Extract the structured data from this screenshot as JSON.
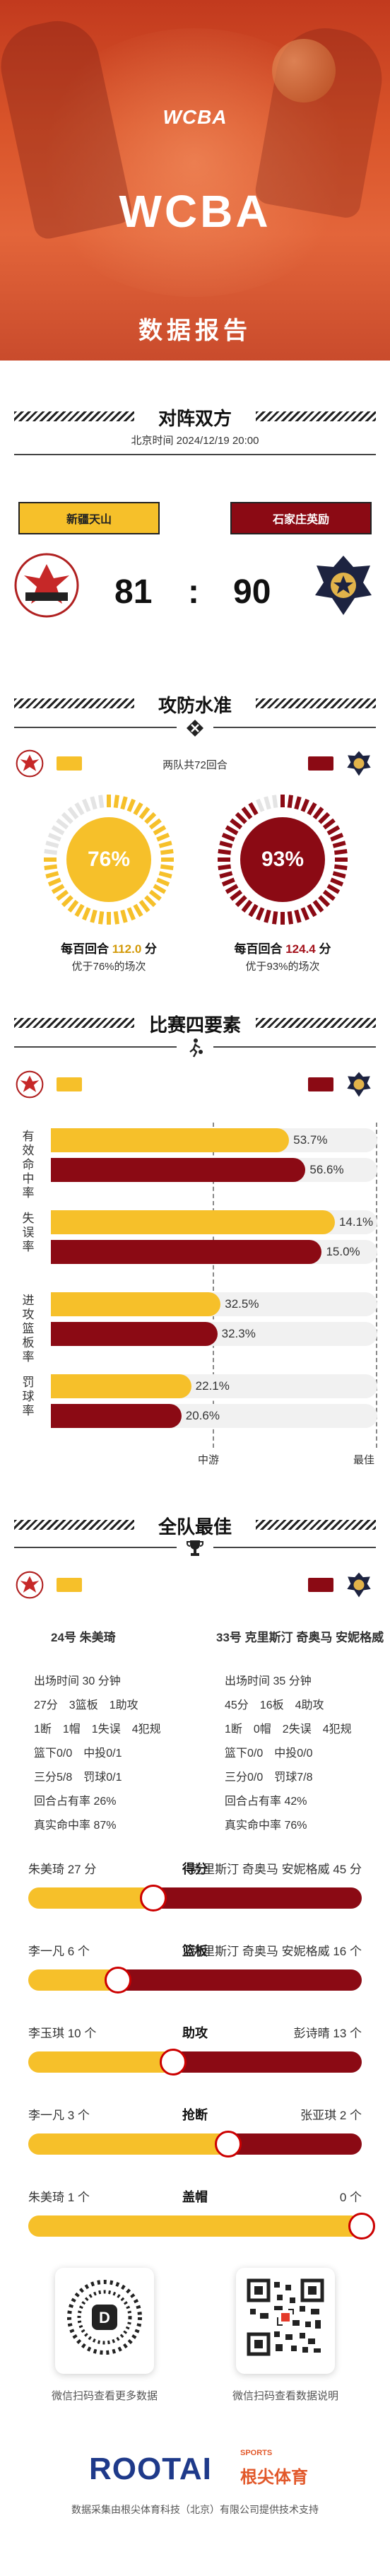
{
  "colors": {
    "team1": "#f6c02a",
    "team2": "#8b0a14",
    "accent": "#c23a1e"
  },
  "header": {
    "logo": "WCBA",
    "title": "WCBA",
    "subtitle": "数据报告"
  },
  "match": {
    "section_title": "对阵双方",
    "time": "北京时间 2024/12/19 20:00",
    "team1": "新疆天山",
    "team2": "石家庄英励",
    "score1": "81",
    "score_sep": ":",
    "score2": "90"
  },
  "offense_defense": {
    "section_title": "攻防水准",
    "rounds_note": "两队共72回合",
    "team1": {
      "pct": "76%",
      "pct_value": 0.76,
      "per100_label": "每百回合",
      "per100_value": "112.0",
      "unit": "分",
      "note": "优于76%的场次"
    },
    "team2": {
      "pct": "93%",
      "pct_value": 0.93,
      "per100_label": "每百回合",
      "per100_value": "124.4",
      "unit": "分",
      "note": "优于93%的场次"
    }
  },
  "four_factors": {
    "section_title": "比赛四要素",
    "axis_mid": "中游",
    "axis_best": "最佳",
    "items": [
      {
        "label": "有效命中率",
        "v1": "53.7%",
        "v2": "56.6%",
        "f1": 0.73,
        "f2": 0.78
      },
      {
        "label": "失误率",
        "v1": "14.1%",
        "v2": "15.0%",
        "f1": 0.87,
        "f2": 0.83
      },
      {
        "label": "进攻篮板率",
        "v1": "32.5%",
        "v2": "32.3%",
        "f1": 0.52,
        "f2": 0.51
      },
      {
        "label": "罚球率",
        "v1": "22.1%",
        "v2": "20.6%",
        "f1": 0.43,
        "f2": 0.4
      }
    ]
  },
  "best": {
    "section_title": "全队最佳",
    "p1": {
      "name": "24号 朱美琦",
      "lines": [
        "出场时间 30 分钟",
        "27分　3篮板　1助攻",
        "1断　1帽　1失误　4犯规",
        "篮下0/0　中投0/1",
        "三分5/8　罚球0/1",
        "回合占有率 26%",
        "真实命中率 87%"
      ]
    },
    "p2": {
      "name": "33号 克里斯汀 奇奥马 安妮格威",
      "lines": [
        "出场时间 35 分钟",
        "45分　16板　4助攻",
        "1断　0帽　2失误　4犯规",
        "篮下0/0　中投0/0",
        "三分0/0　罚球7/8",
        "回合占有率 42%",
        "真实命中率 76%"
      ]
    },
    "compare": [
      {
        "label": "得分",
        "left": "朱美琦 27 分",
        "right": "克里斯汀 奇奥马 安妮格威 45 分",
        "ratio": 0.375
      },
      {
        "label": "篮板",
        "left": "李一凡 6 个",
        "right": "克里斯汀 奇奥马 安妮格威 16 个",
        "ratio": 0.27
      },
      {
        "label": "助攻",
        "left": "李玉琪 10 个",
        "right": "彭诗晴 13 个",
        "ratio": 0.435
      },
      {
        "label": "抢断",
        "left": "李一凡 3 个",
        "right": "张亚琪 2 个",
        "ratio": 0.6
      },
      {
        "label": "盖帽",
        "left": "朱美琦 1 个",
        "right": "0 个",
        "ratio": 1.0
      }
    ]
  },
  "footer": {
    "qr1": "微信扫码查看更多数据",
    "qr2": "微信扫码查看数据说明",
    "brand": "ROOTAI",
    "brand_cn": "根尖体育",
    "brand_tag": "SPORTS",
    "note": "数据采集由根尖体育科技（北京）有限公司提供技术支持"
  }
}
